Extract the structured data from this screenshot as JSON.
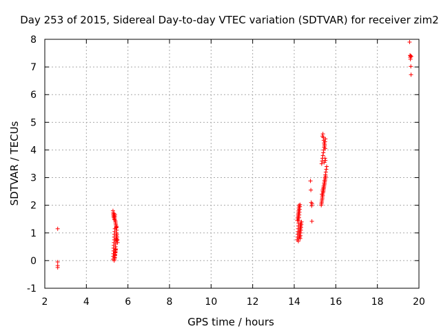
{
  "chart_data": {
    "type": "scatter",
    "title": "Day 253 of 2015, Sidereal Day-to-day VTEC variation (SDTVAR) for receiver zim2",
    "xlabel": "GPS time / hours",
    "ylabel": "SDTVAR / TECUs",
    "xlim": [
      2,
      20
    ],
    "ylim": [
      -1,
      8
    ],
    "xticks": [
      "2",
      "4",
      "6",
      "8",
      "10",
      "12",
      "14",
      "16",
      "18",
      "20"
    ],
    "yticks": [
      "-1",
      "0",
      "1",
      "2",
      "3",
      "4",
      "5",
      "6",
      "7",
      "8"
    ],
    "grid": true,
    "marker": "+",
    "colors": {
      "points": "#ff0000",
      "grid": "#a8a8a8",
      "axes": "#000000"
    },
    "series": [
      {
        "name": "SDTVAR",
        "x": [
          2.62,
          2.62,
          2.62,
          2.62,
          5.28,
          5.29,
          5.3,
          5.31,
          5.31,
          5.32,
          5.33,
          5.34,
          5.34,
          5.35,
          5.36,
          5.37,
          5.37,
          5.38,
          5.39,
          5.4,
          5.4,
          5.41,
          5.42,
          5.43,
          5.44,
          5.45,
          5.46,
          5.47,
          5.48,
          5.49,
          5.5,
          5.28,
          5.29,
          5.3,
          5.31,
          5.32,
          5.33,
          5.34,
          5.35,
          5.36,
          5.37,
          5.38,
          5.39,
          5.4,
          5.41,
          5.42,
          5.43,
          5.34,
          5.35,
          5.36,
          5.37,
          5.38,
          5.39,
          5.4,
          5.41,
          5.42,
          5.43,
          5.44,
          5.45,
          5.46,
          5.47,
          14.14,
          14.16,
          14.17,
          14.18,
          14.19,
          14.2,
          14.21,
          14.22,
          14.23,
          14.24,
          14.25,
          14.26,
          14.27,
          14.28,
          14.29,
          14.3,
          14.31,
          14.32,
          14.33,
          14.34,
          14.35,
          14.18,
          14.19,
          14.2,
          14.21,
          14.22,
          14.23,
          14.24,
          14.25,
          14.26,
          14.27,
          14.28,
          14.29,
          14.2,
          14.22,
          14.24,
          14.26,
          14.28,
          14.3,
          14.32,
          14.15,
          14.17,
          14.19,
          14.21,
          14.23,
          14.25,
          14.78,
          14.8,
          14.82,
          14.84,
          14.85,
          14.86,
          15.3,
          15.32,
          15.34,
          15.35,
          15.36,
          15.38,
          15.4,
          15.42,
          15.44,
          15.46,
          15.48,
          15.5,
          15.52,
          15.54,
          15.56,
          15.31,
          15.33,
          15.35,
          15.37,
          15.39,
          15.41,
          15.43,
          15.45,
          15.47,
          15.49,
          15.51,
          15.32,
          15.34,
          15.36,
          15.38,
          15.4,
          15.42,
          15.44,
          15.46,
          15.48,
          15.5,
          15.36,
          15.38,
          15.4,
          15.42,
          15.44,
          15.46,
          15.48,
          15.5,
          15.4,
          15.42,
          15.44,
          15.46,
          15.48,
          15.5,
          15.33,
          15.37,
          15.41,
          15.45,
          15.49,
          19.55,
          19.57,
          19.58,
          19.59,
          19.6,
          19.61,
          19.62,
          19.63
        ],
        "y": [
          1.15,
          -0.05,
          -0.18,
          -0.25,
          0.05,
          0.15,
          0.25,
          0.35,
          0.45,
          0.55,
          0.65,
          0.75,
          0.85,
          0.95,
          1.05,
          1.15,
          0.1,
          0.2,
          0.3,
          0.4,
          0.5,
          0.6,
          0.7,
          0.8,
          0.9,
          1.0,
          1.1,
          0.95,
          0.85,
          0.75,
          0.65,
          1.8,
          1.72,
          1.66,
          1.6,
          1.55,
          1.62,
          1.7,
          1.48,
          1.52,
          1.58,
          1.65,
          1.45,
          1.4,
          1.35,
          1.3,
          1.25,
          0.0,
          0.05,
          0.12,
          0.18,
          0.22,
          0.28,
          0.32,
          0.38,
          0.42,
          1.18,
          1.2,
          1.22,
          0.78,
          0.72,
          0.75,
          0.85,
          0.95,
          1.05,
          1.15,
          1.25,
          1.35,
          1.45,
          1.55,
          1.65,
          1.75,
          1.85,
          1.95,
          2.02,
          0.8,
          0.9,
          1.0,
          1.1,
          1.2,
          1.3,
          1.4,
          1.5,
          1.6,
          1.7,
          1.8,
          1.9,
          2.0,
          1.0,
          0.9,
          0.85,
          1.1,
          1.2,
          1.3,
          0.7,
          0.8,
          0.95,
          1.05,
          1.15,
          1.25,
          1.35,
          1.45,
          1.55,
          1.65,
          1.75,
          1.85,
          1.95,
          2.88,
          2.55,
          2.1,
          1.98,
          1.42,
          2.05,
          2.0,
          2.1,
          2.2,
          2.3,
          2.4,
          2.5,
          2.6,
          2.7,
          2.8,
          2.9,
          3.0,
          3.1,
          3.2,
          3.3,
          3.4,
          2.05,
          2.15,
          2.25,
          2.35,
          2.45,
          2.55,
          2.65,
          2.75,
          2.85,
          2.95,
          3.05,
          3.5,
          3.6,
          3.7,
          3.8,
          3.9,
          4.0,
          4.1,
          4.2,
          4.3,
          4.4,
          4.5,
          4.58,
          4.45,
          4.35,
          4.25,
          4.15,
          3.7,
          3.62,
          2.5,
          2.6,
          2.7,
          2.8,
          2.9,
          3.0,
          2.4,
          2.55,
          2.65,
          3.55,
          4.05,
          7.9,
          7.42,
          7.35,
          7.28,
          7.4,
          7.02,
          6.72,
          7.38
        ]
      }
    ]
  }
}
